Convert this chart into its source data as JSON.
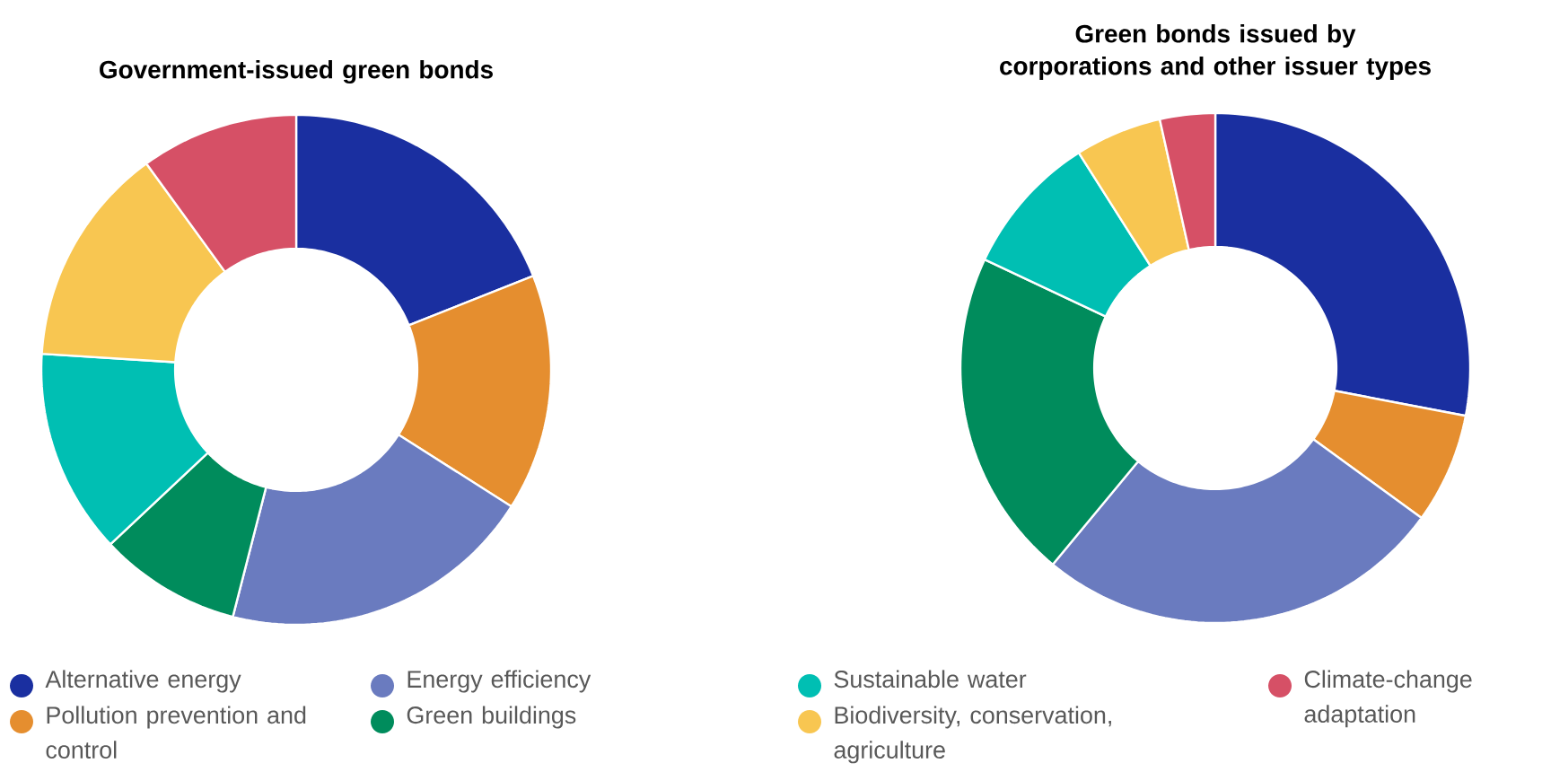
{
  "chart_data": [
    {
      "type": "donut",
      "title": "Government-issued green bonds",
      "legend": "bottom",
      "categories": [
        "Alternative energy",
        "Pollution prevention and control",
        "Energy efficiency",
        "Green buildings",
        null,
        null,
        null
      ],
      "values": [
        19,
        15,
        20,
        9,
        13,
        14,
        10
      ],
      "colors": [
        "#1a2fa0",
        "#e58e2f",
        "#6a7bbf",
        "#008c5c",
        "#00bfb3",
        "#f8c651",
        "#d65066"
      ]
    },
    {
      "type": "donut",
      "title": "Green bonds issued by corporations and other issuer types",
      "legend": "bottom",
      "categories": [
        null,
        null,
        null,
        null,
        "Sustainable water",
        "Biodiversity, conservation, agriculture",
        "Climate-change adaptation"
      ],
      "values": [
        28,
        7,
        26,
        21,
        9,
        5.5,
        3.5
      ],
      "colors": [
        "#1a2fa0",
        "#e58e2f",
        "#6a7bbf",
        "#008c5c",
        "#00bfb3",
        "#f8c651",
        "#d65066"
      ]
    }
  ]
}
